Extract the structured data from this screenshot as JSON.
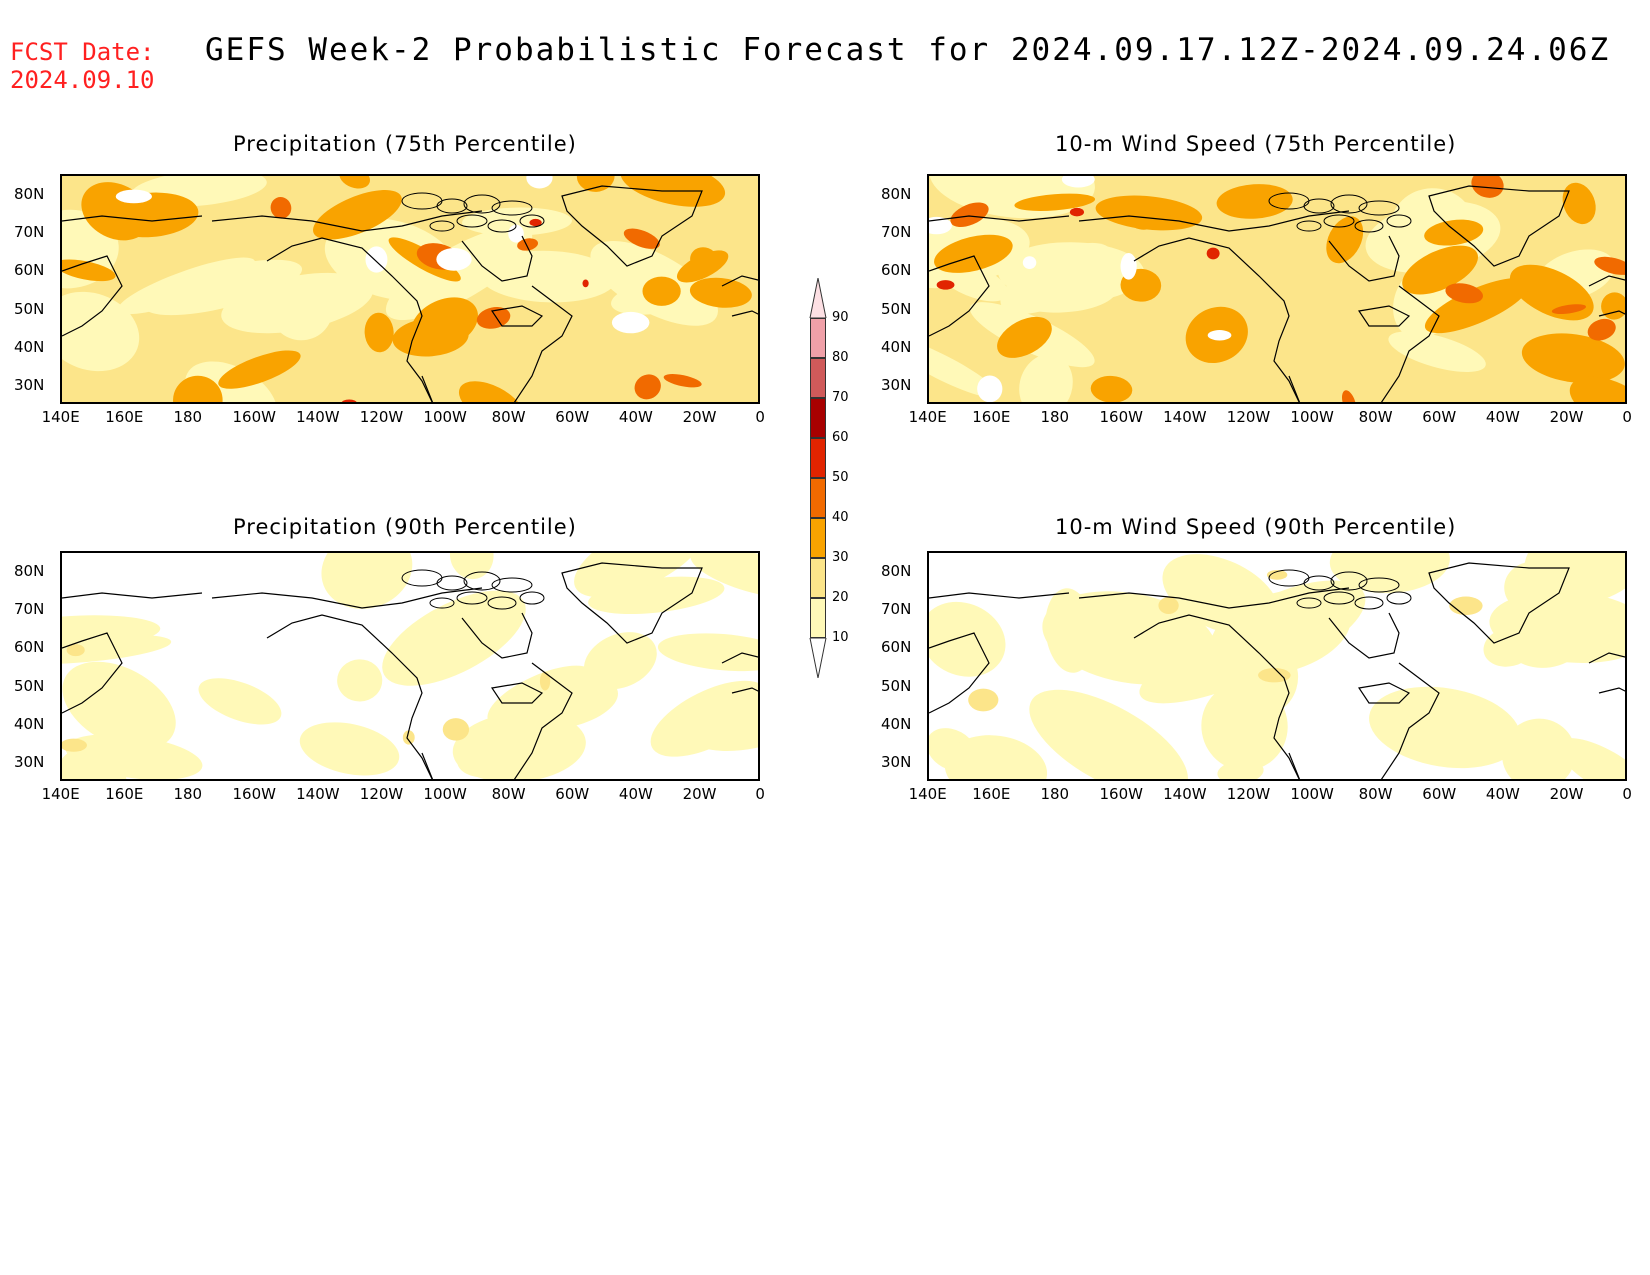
{
  "header": {
    "fcst_label": "FCST Date:",
    "fcst_date": "2024.09.10",
    "title": "GEFS Week-2 Probabilistic Forecast for 2024.09.17.12Z-2024.09.24.06Z"
  },
  "panels": [
    {
      "title": "Precipitation (75th Percentile)",
      "variable": "precipitation",
      "percentile": 75
    },
    {
      "title": "10-m Wind Speed (75th Percentile)",
      "variable": "wind",
      "percentile": 75
    },
    {
      "title": "Precipitation (90th Percentile)",
      "variable": "precipitation",
      "percentile": 90
    },
    {
      "title": "10-m Wind Speed (90th Percentile)",
      "variable": "wind",
      "percentile": 90
    }
  ],
  "axes": {
    "lon_labels": [
      "140E",
      "160E",
      "180",
      "160W",
      "140W",
      "120W",
      "100W",
      "80W",
      "60W",
      "40W",
      "20W",
      "0"
    ],
    "lat_labels": [
      "80N",
      "70N",
      "60N",
      "50N",
      "40N",
      "30N"
    ]
  },
  "colorbar": {
    "levels": [
      "10",
      "20",
      "30",
      "40",
      "50",
      "60",
      "70",
      "80",
      "90"
    ],
    "colors": [
      "#fff9b8",
      "#fce58a",
      "#f9a300",
      "#f16a00",
      "#e12400",
      "#a80000",
      "#d05a5a",
      "#f0a0a8",
      "#fde0e4"
    ]
  }
}
